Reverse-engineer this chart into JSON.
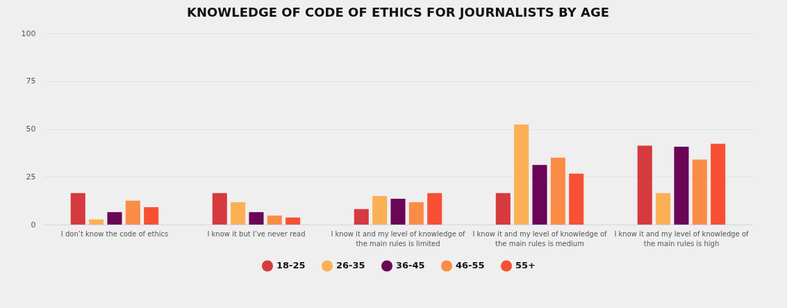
{
  "chart_data": {
    "type": "bar",
    "title": "KNOWLEDGE OF CODE OF ETHICS FOR JOURNALISTS BY AGE",
    "categories": [
      "I don’t know the code of ethics",
      "I know it but I’ve never read",
      "I know it and my level of knowledge of the main rules is limited",
      "I know it and my level of knowledge of the main rules is medium",
      "I know it and my level of knowledge of the main rules is high"
    ],
    "series": [
      {
        "name": "18-25",
        "color": "#d63a3f",
        "values": [
          16.5,
          16.5,
          8.1,
          16.5,
          41.3
        ]
      },
      {
        "name": "26-35",
        "color": "#fbb055",
        "values": [
          2.7,
          11.7,
          14.9,
          52.4,
          16.5
        ]
      },
      {
        "name": "36-45",
        "color": "#6b0557",
        "values": [
          6.5,
          6.5,
          13.5,
          31.2,
          40.7
        ]
      },
      {
        "name": "46-55",
        "color": "#fb8c46",
        "values": [
          12.5,
          4.7,
          11.7,
          35,
          34
        ]
      },
      {
        "name": "55+",
        "color": "#f85034",
        "values": [
          9.1,
          3.7,
          16.5,
          26.6,
          42.3
        ]
      }
    ],
    "ylim": [
      0,
      100
    ],
    "yticks": [
      0,
      25,
      50,
      75,
      100
    ],
    "grid": "y",
    "legend": "bottom",
    "marker": "circle"
  }
}
